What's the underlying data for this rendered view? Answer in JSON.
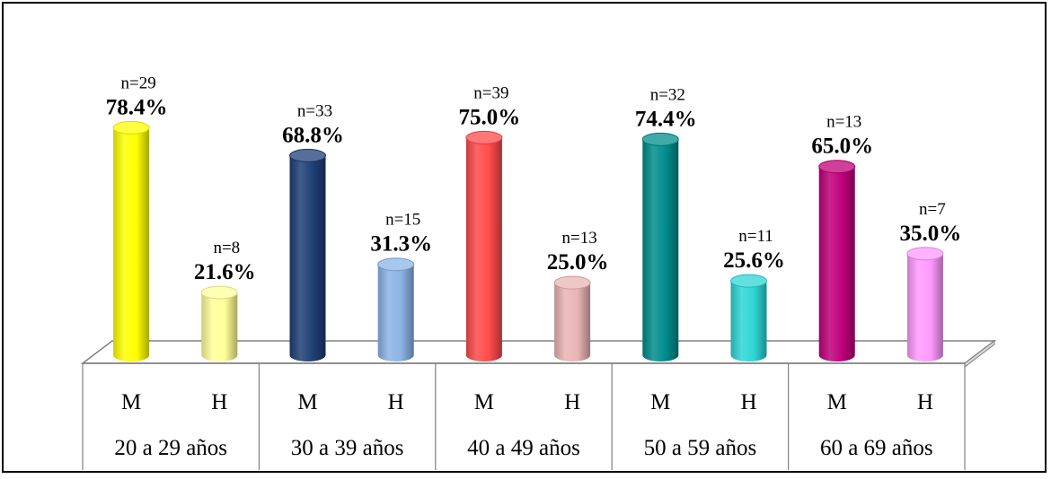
{
  "chart_data": {
    "type": "bar",
    "title": "",
    "xlabel": "",
    "ylabel": "",
    "ylim": [
      0,
      100
    ],
    "groups": [
      {
        "label": "20 a 29 años",
        "bars": [
          {
            "category": "M",
            "value": 78.4,
            "value_label": "78.4%",
            "n_label": "n=29",
            "color": "#ffff00"
          },
          {
            "category": "H",
            "value": 21.6,
            "value_label": "21.6%",
            "n_label": "n=8",
            "color": "#ffff99"
          }
        ]
      },
      {
        "label": "30 a 39 años",
        "bars": [
          {
            "category": "M",
            "value": 68.8,
            "value_label": "68.8%",
            "n_label": "n=33",
            "color": "#1f3f75"
          },
          {
            "category": "H",
            "value": 31.3,
            "value_label": "31.3%",
            "n_label": "n=15",
            "color": "#8cb3e6"
          }
        ]
      },
      {
        "label": "40 a 49 años",
        "bars": [
          {
            "category": "M",
            "value": 75.0,
            "value_label": "75.0%",
            "n_label": "n=39",
            "color": "#ff4a4a"
          },
          {
            "category": "H",
            "value": 25.0,
            "value_label": "25.0%",
            "n_label": "n=13",
            "color": "#eab4b4"
          }
        ]
      },
      {
        "label": "50 a 59 años",
        "bars": [
          {
            "category": "M",
            "value": 74.4,
            "value_label": "74.4%",
            "n_label": "n=32",
            "color": "#008c8c"
          },
          {
            "category": "H",
            "value": 25.6,
            "value_label": "25.6%",
            "n_label": "n=11",
            "color": "#2ed6d6"
          }
        ]
      },
      {
        "label": "60 a 69 años",
        "bars": [
          {
            "category": "M",
            "value": 65.0,
            "value_label": "65.0%",
            "n_label": "n=13",
            "color": "#c0007a"
          },
          {
            "category": "H",
            "value": 35.0,
            "value_label": "35.0%",
            "n_label": "n=7",
            "color": "#ff99ff"
          }
        ]
      }
    ]
  }
}
